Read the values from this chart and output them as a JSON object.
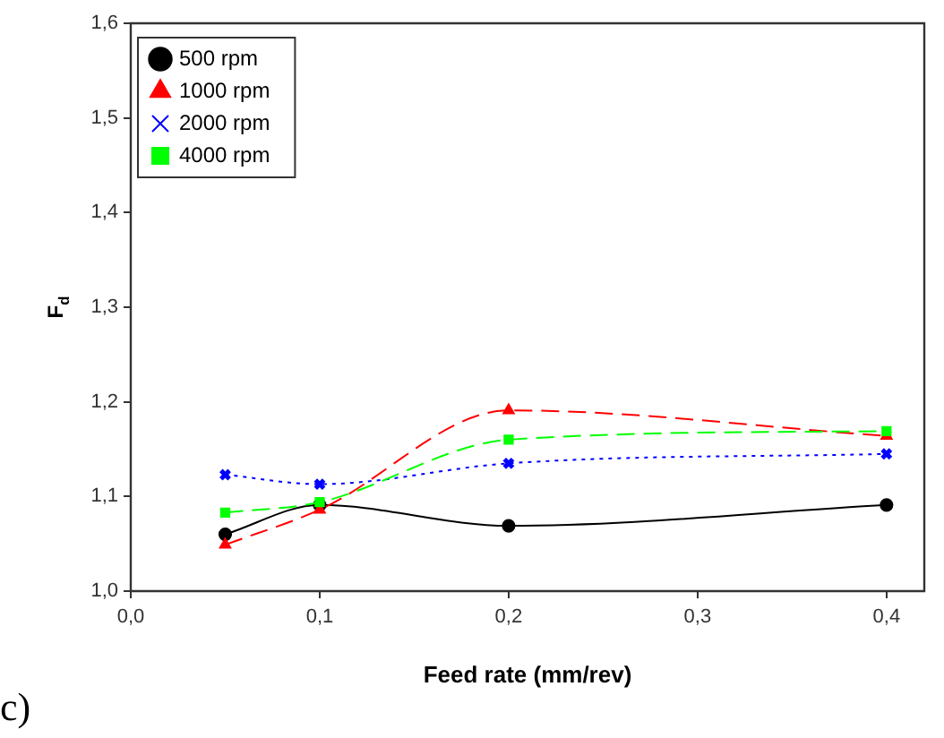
{
  "chart_data": {
    "type": "line",
    "xlabel": "Feed rate (mm/rev)",
    "ylabel": "F$_{d}$",
    "x": [
      0.05,
      0.1,
      0.2,
      0.4
    ],
    "xlim": [
      0,
      0.42
    ],
    "xticks": [
      {
        "value": 0,
        "label": "0,0"
      },
      {
        "value": 0.1,
        "label": "0,1"
      },
      {
        "value": 0.2,
        "label": "0,2"
      },
      {
        "value": 0.3,
        "label": "0,3"
      },
      {
        "value": 0.4,
        "label": "0,4"
      }
    ],
    "ylim": [
      1.0,
      1.6
    ],
    "yticks": [
      {
        "value": 1.0,
        "label": "1,0"
      },
      {
        "value": 1.1,
        "label": "1,1"
      },
      {
        "value": 1.2,
        "label": "1,2"
      },
      {
        "value": 1.3,
        "label": "1,3"
      },
      {
        "value": 1.4,
        "label": "1,4"
      },
      {
        "value": 1.5,
        "label": "1,5"
      },
      {
        "value": 1.6,
        "label": "1,6"
      }
    ],
    "grid": false,
    "legend": "top left",
    "annotations": [
      "c)"
    ],
    "series": [
      {
        "name": "500 rpm",
        "color": "#000000",
        "marker": "circle",
        "line_style": "solid",
        "values": [
          1.06,
          1.091,
          1.069,
          1.091
        ]
      },
      {
        "name": "1000 rpm",
        "color": "#ff0000",
        "marker": "triangle",
        "line_style": "dashed",
        "values": [
          1.049,
          1.086,
          1.191,
          1.164
        ]
      },
      {
        "name": "2000 rpm",
        "color": "#0000ff",
        "marker": "cross",
        "line_style": "dotted",
        "values": [
          1.123,
          1.113,
          1.135,
          1.145
        ]
      },
      {
        "name": "4000 rpm",
        "color": "#00ff00",
        "marker": "square",
        "line_style": "dashed",
        "values": [
          1.083,
          1.094,
          1.16,
          1.169
        ]
      }
    ]
  }
}
